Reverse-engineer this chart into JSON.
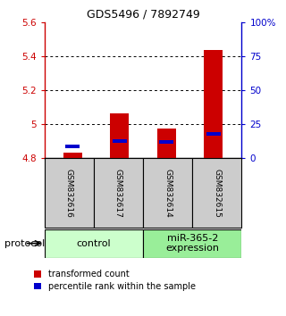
{
  "title": "GDS5496 / 7892749",
  "samples": [
    "GSM832616",
    "GSM832617",
    "GSM832614",
    "GSM832615"
  ],
  "group_names": [
    "control",
    "miR-365-2\nexpression"
  ],
  "group_colors": [
    "#ccffcc",
    "#99ee99"
  ],
  "transformed_counts": [
    4.83,
    5.065,
    4.975,
    5.435
  ],
  "percentile_ranks": [
    4.867,
    4.9,
    4.895,
    4.942
  ],
  "bar_bottom": 4.8,
  "ylim_left": [
    4.8,
    5.6
  ],
  "ylim_right": [
    0,
    100
  ],
  "yticks_left": [
    4.8,
    5.0,
    5.2,
    5.4,
    5.6
  ],
  "ytick_labels_left": [
    "4.8",
    "5",
    "5.2",
    "5.4",
    "5.6"
  ],
  "yticks_right": [
    0,
    25,
    50,
    75,
    100
  ],
  "ytick_labels_right": [
    "0",
    "25",
    "50",
    "75",
    "100%"
  ],
  "grid_yticks": [
    5.0,
    5.2,
    5.4
  ],
  "bar_color_red": "#cc0000",
  "bar_color_blue": "#0000cc",
  "bar_width": 0.4,
  "sample_bg_color": "#cccccc",
  "legend_red_label": "transformed count",
  "legend_blue_label": "percentile rank within the sample",
  "protocol_label": "protocol",
  "title_fontsize": 9,
  "tick_fontsize": 7.5,
  "sample_fontsize": 6.5,
  "group_fontsize": 8,
  "legend_fontsize": 7
}
